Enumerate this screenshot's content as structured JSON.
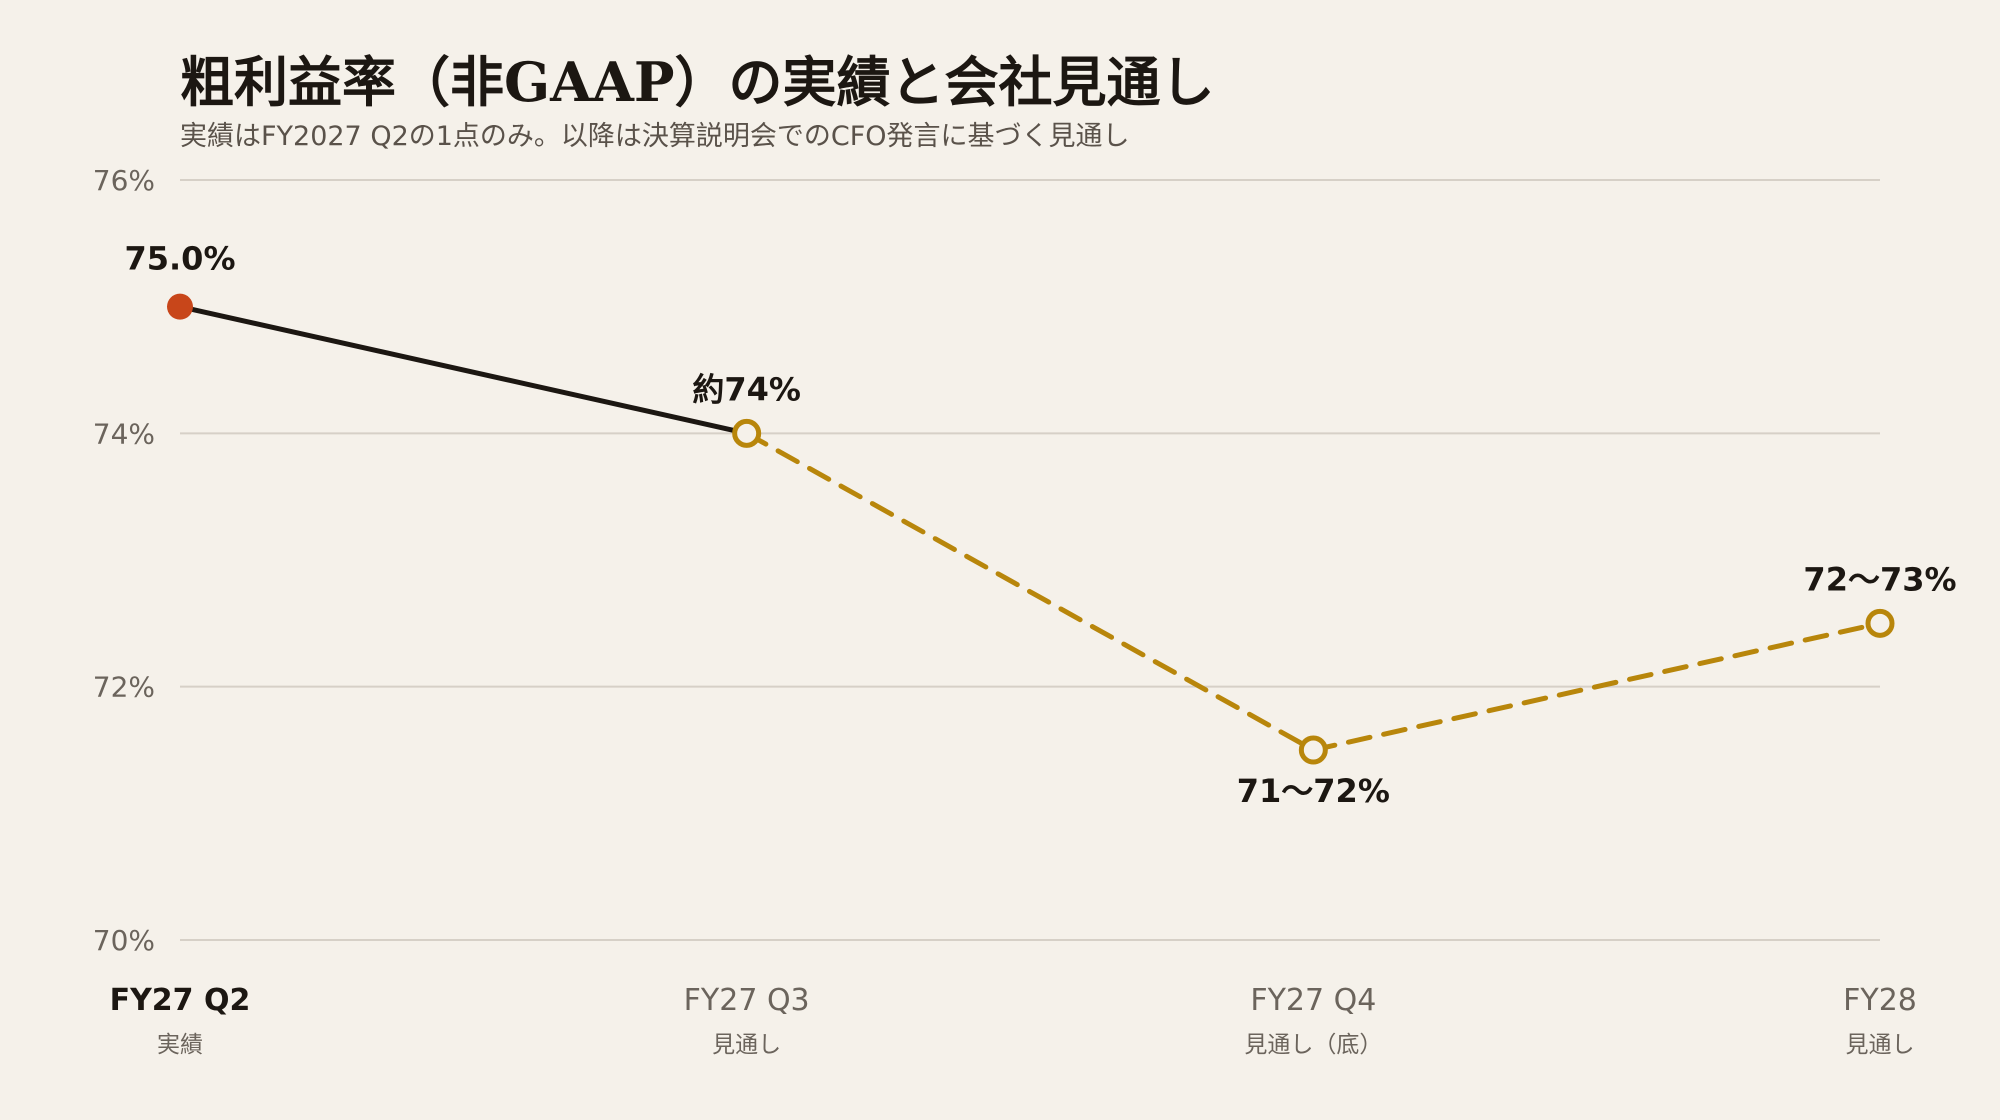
{
  "chart_data": {
    "type": "line",
    "title": "粗利益率（非GAAP）の実績と会社見通し",
    "subtitle": "実績はFY2027 Q2の1点のみ。以降は決算説明会でのCFO発言に基づく見通し",
    "ylim": [
      70,
      76
    ],
    "yticks": [
      70,
      72,
      74,
      76
    ],
    "ytick_labels": [
      "70%",
      "72%",
      "74%",
      "76%"
    ],
    "grid": true,
    "categories": [
      "FY27 Q2",
      "FY27 Q3",
      "FY27 Q4",
      "FY28"
    ],
    "category_sublabels": [
      "実績",
      "見通し",
      "見通し（底）",
      "見通し"
    ],
    "values": [
      75.0,
      74.0,
      71.5,
      72.5
    ],
    "data_labels": [
      "75.0%",
      "約74%",
      "71〜72%",
      "72〜73%"
    ],
    "point_status": [
      "actual",
      "forecast",
      "forecast",
      "forecast"
    ],
    "colors": {
      "actual_point": "#c8461a",
      "actual_line": "#1c1712",
      "forecast": "#b8860b"
    }
  }
}
